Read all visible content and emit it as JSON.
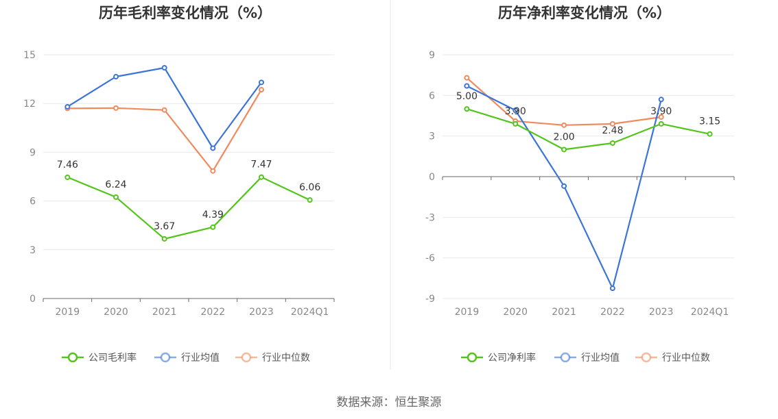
{
  "chart_data": [
    {
      "type": "line",
      "title": "历年毛利率变化情况（%）",
      "categories": [
        "2019",
        "2020",
        "2021",
        "2022",
        "2023",
        "2024Q1"
      ],
      "ylim": [
        0,
        15
      ],
      "yticks": [
        "0",
        "3",
        "6",
        "9",
        "12",
        "15"
      ],
      "grid": true,
      "legend_position": "bottom-center",
      "series": [
        {
          "name": "公司毛利率",
          "color": "#52c41a",
          "values": [
            7.46,
            6.24,
            3.67,
            4.39,
            7.47,
            6.06
          ],
          "labels": [
            "7.46",
            "6.24",
            "3.67",
            "4.39",
            "7.47",
            "6.06"
          ]
        },
        {
          "name": "行业均值",
          "color": "#3b74d9",
          "values": [
            11.8,
            13.65,
            14.2,
            9.25,
            13.3,
            null
          ]
        },
        {
          "name": "行业中位数",
          "color": "#f08a5d",
          "values": [
            11.7,
            11.72,
            11.6,
            7.85,
            12.85,
            null
          ]
        }
      ]
    },
    {
      "type": "line",
      "title": "历年净利率变化情况（%）",
      "categories": [
        "2019",
        "2020",
        "2021",
        "2022",
        "2023",
        "2024Q1"
      ],
      "ylim": [
        -9,
        9
      ],
      "yticks": [
        "-9",
        "-6",
        "-3",
        "0",
        "3",
        "6",
        "9"
      ],
      "grid": true,
      "legend_position": "bottom-center",
      "series": [
        {
          "name": "公司净利率",
          "color": "#52c41a",
          "values": [
            5.0,
            3.9,
            2.0,
            2.48,
            3.9,
            3.15
          ],
          "labels": [
            "5.00",
            "3.90",
            "2.00",
            "2.48",
            "3.90",
            "3.15"
          ]
        },
        {
          "name": "行业均值",
          "color": "#3b74d9",
          "values": [
            6.7,
            4.9,
            -0.7,
            -8.25,
            5.7,
            null
          ]
        },
        {
          "name": "行业中位数",
          "color": "#f08a5d",
          "values": [
            7.3,
            4.1,
            3.8,
            3.9,
            4.4,
            null
          ]
        }
      ]
    }
  ],
  "footer": {
    "source": "数据来源：恒生聚源"
  }
}
